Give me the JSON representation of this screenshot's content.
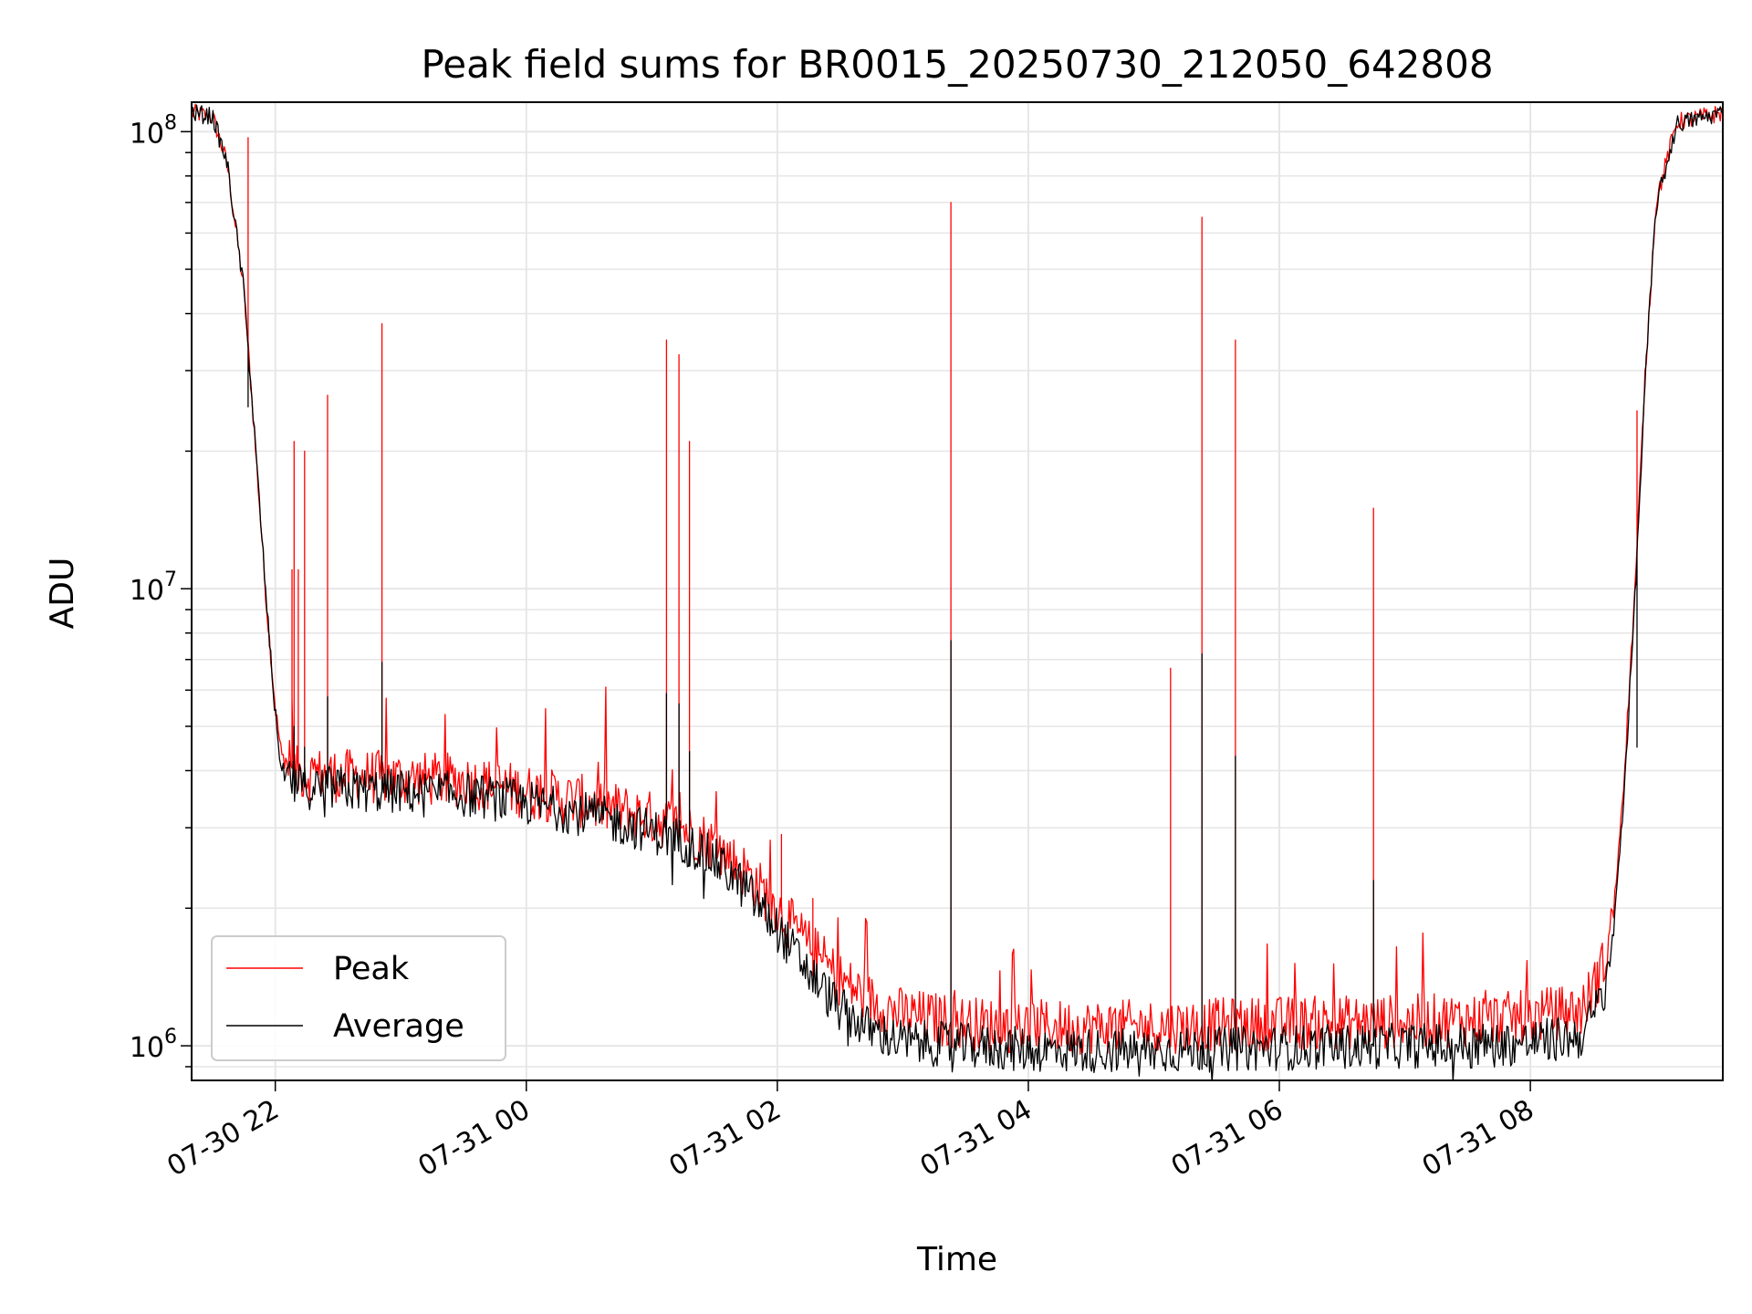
{
  "chart_data": {
    "type": "line",
    "title": "Peak field sums for BR0015_20250730_212050_642808",
    "xlabel": "Time",
    "ylabel": "ADU",
    "yscale": "log",
    "ylim": [
      840000,
      116000000
    ],
    "xlim": [
      "2025-07-30 21:20",
      "2025-07-31 09:32"
    ],
    "x_ticks": [
      {
        "time": "2025-07-30 22:00",
        "label": "07-30 22"
      },
      {
        "time": "2025-07-31 00:00",
        "label": "07-31 00"
      },
      {
        "time": "2025-07-31 02:00",
        "label": "07-31 02"
      },
      {
        "time": "2025-07-31 04:00",
        "label": "07-31 04"
      },
      {
        "time": "2025-07-31 06:00",
        "label": "07-31 06"
      },
      {
        "time": "2025-07-31 08:00",
        "label": "07-31 08"
      }
    ],
    "y_ticks": [
      {
        "value": 1000000,
        "base": "10",
        "exp": "6"
      },
      {
        "value": 10000000,
        "base": "10",
        "exp": "7"
      },
      {
        "value": 100000000,
        "base": "10",
        "exp": "8"
      }
    ],
    "grid": true,
    "legend_position": "lower-left",
    "series": [
      {
        "name": "Peak",
        "color": "#ff0000",
        "baseline": [
          [
            "2025-07-30 21:20",
            110000000
          ],
          [
            "2025-07-30 21:30",
            108000000
          ],
          [
            "2025-07-30 21:37",
            85000000
          ],
          [
            "2025-07-30 21:45",
            45000000
          ],
          [
            "2025-07-30 21:50",
            22000000
          ],
          [
            "2025-07-30 21:56",
            9000000
          ],
          [
            "2025-07-30 22:00",
            5500000
          ],
          [
            "2025-07-30 22:03",
            4300000
          ],
          [
            "2025-07-30 22:10",
            3950000
          ],
          [
            "2025-07-30 22:30",
            3900000
          ],
          [
            "2025-07-30 23:00",
            3850000
          ],
          [
            "2025-07-30 23:30",
            3800000
          ],
          [
            "2025-07-31 00:00",
            3600000
          ],
          [
            "2025-07-31 00:30",
            3400000
          ],
          [
            "2025-07-31 01:00",
            3150000
          ],
          [
            "2025-07-31 01:15",
            3000000
          ],
          [
            "2025-07-31 01:30",
            2750000
          ],
          [
            "2025-07-31 01:45",
            2400000
          ],
          [
            "2025-07-31 02:00",
            2000000
          ],
          [
            "2025-07-31 02:15",
            1650000
          ],
          [
            "2025-07-31 02:30",
            1400000
          ],
          [
            "2025-07-31 02:45",
            1250000
          ],
          [
            "2025-07-31 03:00",
            1170000
          ],
          [
            "2025-07-31 03:30",
            1120000
          ],
          [
            "2025-07-31 04:00",
            1100000
          ],
          [
            "2025-07-31 05:00",
            1100000
          ],
          [
            "2025-07-31 06:00",
            1120000
          ],
          [
            "2025-07-31 07:00",
            1130000
          ],
          [
            "2025-07-31 07:55",
            1150000
          ],
          [
            "2025-07-31 08:25",
            1200000
          ],
          [
            "2025-07-31 08:35",
            1500000
          ],
          [
            "2025-07-31 08:40",
            2000000
          ],
          [
            "2025-07-31 08:45",
            4000000
          ],
          [
            "2025-07-31 08:50",
            10000000
          ],
          [
            "2025-07-31 08:55",
            30000000
          ],
          [
            "2025-07-31 09:00",
            70000000
          ],
          [
            "2025-07-31 09:10",
            105000000
          ],
          [
            "2025-07-31 09:32",
            110000000
          ]
        ],
        "spikes": [
          [
            "2025-07-30 21:47",
            97000000
          ],
          [
            "2025-07-30 22:08",
            11000000
          ],
          [
            "2025-07-30 22:09",
            21000000
          ],
          [
            "2025-07-30 22:11",
            11000000
          ],
          [
            "2025-07-30 22:14",
            20000000
          ],
          [
            "2025-07-30 22:25",
            26500000
          ],
          [
            "2025-07-30 22:51",
            38000000
          ],
          [
            "2025-07-31 01:07",
            35000000
          ],
          [
            "2025-07-31 01:13",
            32500000
          ],
          [
            "2025-07-31 01:18",
            21000000
          ],
          [
            "2025-07-31 02:02",
            2900000
          ],
          [
            "2025-07-31 02:17",
            2100000
          ],
          [
            "2025-07-31 03:23",
            70000000
          ],
          [
            "2025-07-31 05:08",
            6700000
          ],
          [
            "2025-07-31 05:23",
            65000000
          ],
          [
            "2025-07-31 05:39",
            35000000
          ],
          [
            "2025-07-31 06:45",
            15000000
          ],
          [
            "2025-07-31 08:51",
            24500000
          ]
        ]
      },
      {
        "name": "Average",
        "color": "#000000",
        "baseline": [
          [
            "2025-07-30 21:20",
            110000000
          ],
          [
            "2025-07-30 21:30",
            108000000
          ],
          [
            "2025-07-30 21:37",
            85000000
          ],
          [
            "2025-07-30 21:45",
            45000000
          ],
          [
            "2025-07-30 21:50",
            22000000
          ],
          [
            "2025-07-30 21:56",
            9000000
          ],
          [
            "2025-07-30 22:00",
            5300000
          ],
          [
            "2025-07-30 22:03",
            4000000
          ],
          [
            "2025-07-30 22:10",
            3700000
          ],
          [
            "2025-07-30 22:30",
            3650000
          ],
          [
            "2025-07-30 23:00",
            3600000
          ],
          [
            "2025-07-30 23:30",
            3550000
          ],
          [
            "2025-07-31 00:00",
            3400000
          ],
          [
            "2025-07-31 00:30",
            3200000
          ],
          [
            "2025-07-31 01:00",
            2950000
          ],
          [
            "2025-07-31 01:15",
            2800000
          ],
          [
            "2025-07-31 01:30",
            2550000
          ],
          [
            "2025-07-31 01:45",
            2200000
          ],
          [
            "2025-07-31 02:00",
            1800000
          ],
          [
            "2025-07-31 02:15",
            1450000
          ],
          [
            "2025-07-31 02:30",
            1200000
          ],
          [
            "2025-07-31 02:45",
            1080000
          ],
          [
            "2025-07-31 03:00",
            1020000
          ],
          [
            "2025-07-31 03:30",
            1000000
          ],
          [
            "2025-07-31 04:00",
            980000
          ],
          [
            "2025-07-31 05:00",
            975000
          ],
          [
            "2025-07-31 06:00",
            990000
          ],
          [
            "2025-07-31 07:00",
            1000000
          ],
          [
            "2025-07-31 07:55",
            1010000
          ],
          [
            "2025-07-31 08:25",
            1050000
          ],
          [
            "2025-07-31 08:35",
            1300000
          ],
          [
            "2025-07-31 08:40",
            1800000
          ],
          [
            "2025-07-31 08:45",
            3700000
          ],
          [
            "2025-07-31 08:50",
            9500000
          ],
          [
            "2025-07-31 08:55",
            29000000
          ],
          [
            "2025-07-31 09:00",
            68000000
          ],
          [
            "2025-07-31 09:10",
            104000000
          ],
          [
            "2025-07-31 09:32",
            110000000
          ]
        ],
        "spikes": [
          [
            "2025-07-30 21:47",
            25000000
          ],
          [
            "2025-07-30 22:09",
            5000000
          ],
          [
            "2025-07-30 22:14",
            4500000
          ],
          [
            "2025-07-30 22:25",
            5800000
          ],
          [
            "2025-07-30 22:51",
            6900000
          ],
          [
            "2025-07-31 01:07",
            5900000
          ],
          [
            "2025-07-31 01:13",
            5600000
          ],
          [
            "2025-07-31 01:18",
            4400000
          ],
          [
            "2025-07-31 03:23",
            7700000
          ],
          [
            "2025-07-31 05:23",
            7200000
          ],
          [
            "2025-07-31 05:39",
            4300000
          ],
          [
            "2025-07-31 06:45",
            2300000
          ],
          [
            "2025-07-31 08:51",
            4500000
          ]
        ]
      }
    ]
  }
}
